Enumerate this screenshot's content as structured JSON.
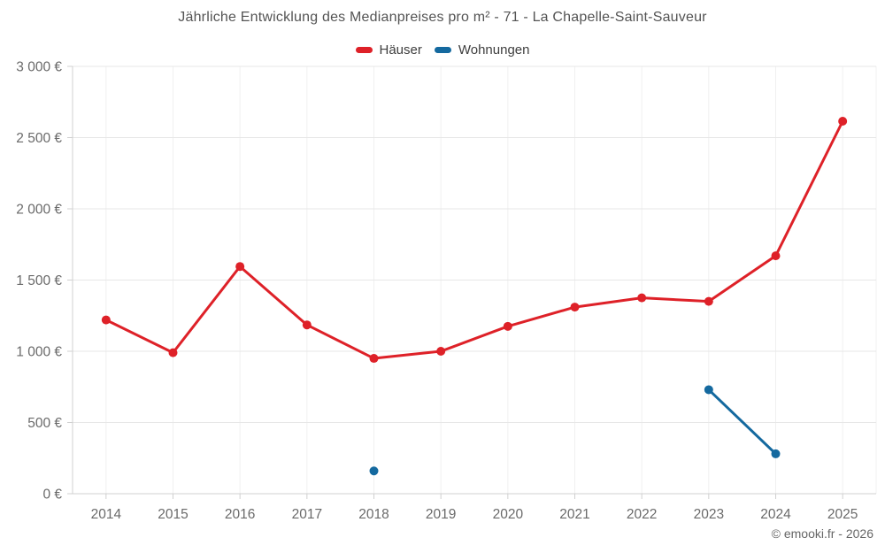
{
  "title": "Jährliche Entwicklung des Medianpreises pro m² - 71 - La Chapelle-Saint-Sauveur",
  "copyright": "© emooki.fr - 2026",
  "colors": {
    "hauser_red": "#de2128",
    "wohnungen_blue": "#14699f",
    "grid_horizontal": "#e7e7e7",
    "grid_vertical": "#f0f0f0",
    "axis_line": "#d0d0d0",
    "tick_label": "#6a6a6a",
    "title_text": "#545454",
    "background": "#ffffff"
  },
  "chart_data": {
    "type": "line",
    "title": "Jährliche Entwicklung des Medianpreises pro m² - 71 - La Chapelle-Saint-Sauveur",
    "xlabel": "",
    "ylabel": "",
    "categories": [
      "2014",
      "2015",
      "2016",
      "2017",
      "2018",
      "2019",
      "2020",
      "2021",
      "2022",
      "2023",
      "2024",
      "2025"
    ],
    "series": [
      {
        "name": "Häuser",
        "color": "#de2128",
        "values": [
          1220,
          990,
          1595,
          1185,
          950,
          1000,
          1175,
          1310,
          1375,
          1350,
          1670,
          2615
        ]
      },
      {
        "name": "Wohnungen",
        "color": "#14699f",
        "values": [
          null,
          null,
          null,
          null,
          160,
          null,
          null,
          null,
          null,
          730,
          280,
          null
        ]
      }
    ],
    "ylim": [
      0,
      3000
    ],
    "ytick_step": 500,
    "ytick_labels": [
      "0 €",
      "500 €",
      "1 000 €",
      "1 500 €",
      "2 000 €",
      "2 500 €",
      "3 000 €"
    ],
    "grid": true,
    "legend_position": "top"
  }
}
